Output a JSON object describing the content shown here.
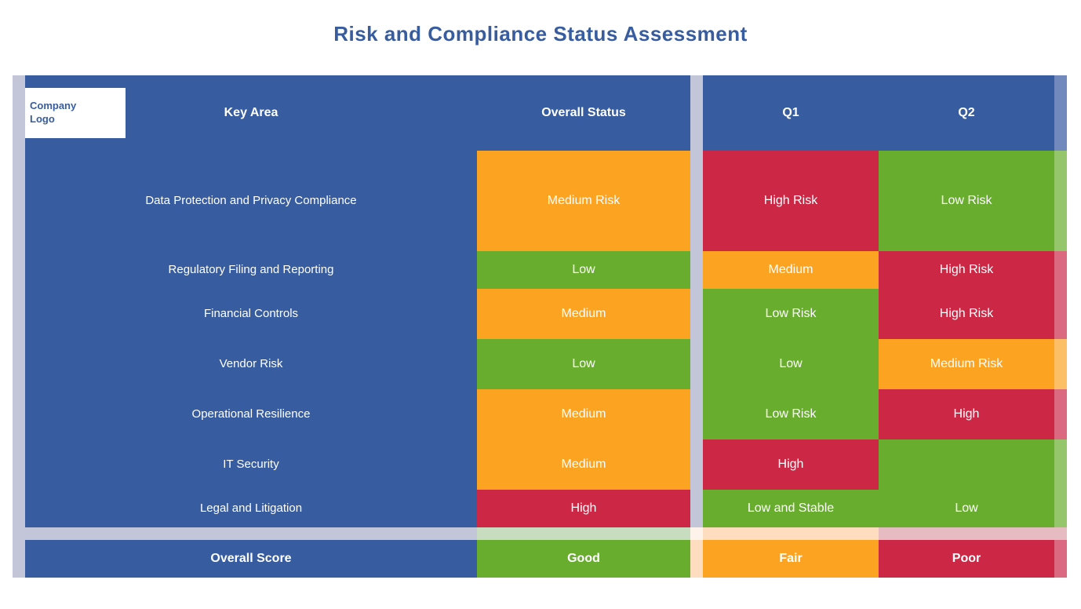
{
  "title": "Risk and Compliance Status Assessment",
  "logo": {
    "line1": "Company",
    "line2": "Logo"
  },
  "header": {
    "col0": "Key Area",
    "col1": "Overall Status",
    "col2": "Q1",
    "col3": "Q2"
  },
  "rows": [
    {
      "label": "Data Protection and Privacy Compliance",
      "c1": "Medium Risk",
      "c2": "High Risk",
      "c3": "Low Risk"
    },
    {
      "label": "Regulatory Filing and Reporting",
      "c1": "Low",
      "c2": "Medium",
      "c3": "High Risk"
    },
    {
      "label": "Financial Controls",
      "c1": "Medium",
      "c2": "Low Risk",
      "c3": "High Risk"
    },
    {
      "label": "Vendor Risk",
      "c1": "Low",
      "c2": "Low",
      "c3": "Medium Risk"
    },
    {
      "label": "Operational Resilience",
      "c1": "Medium",
      "c2": "Low Risk",
      "c3": "High"
    },
    {
      "label": "IT Security",
      "c1": "Medium",
      "c2": "High",
      "c3": ""
    },
    {
      "label": "Legal and Litigation",
      "c1": "High",
      "c2": "Low and Stable",
      "c3": "Low"
    }
  ],
  "footer": {
    "label": "Overall Score",
    "c1": "Good",
    "c2": "Fair",
    "c3": "Poor"
  },
  "colors": {
    "blue": "#375c9f",
    "orange": "#fca321",
    "green": "#68ad2e",
    "red": "#cc2744",
    "separator": "#c3c6d9"
  }
}
